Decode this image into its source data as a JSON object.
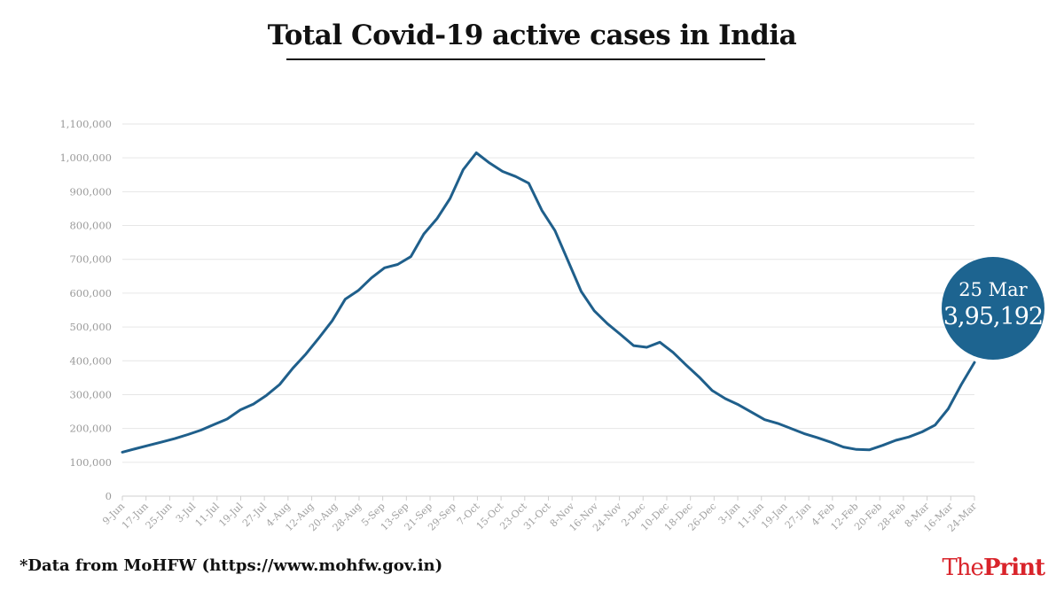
{
  "title": "Total Covid-19 active cases in India",
  "footer_note": "*Data from MoHFW (https://www.mohfw.gov.in)",
  "logo": {
    "the": "The",
    "print": "Print"
  },
  "colors": {
    "line": "#1f5f8b",
    "callout": "#1d6490",
    "grid": "#e6e6e6",
    "logo": "#d9242b"
  },
  "chart_data": {
    "type": "line",
    "title": "Total Covid-19 active cases in India",
    "xlabel": "",
    "ylabel": "",
    "ylim": [
      0,
      1100000
    ],
    "grid": true,
    "y_ticks": [
      0,
      100000,
      200000,
      300000,
      400000,
      500000,
      600000,
      700000,
      800000,
      900000,
      1000000,
      1100000
    ],
    "y_tick_labels": [
      "0",
      "100,000",
      "200,000",
      "300,000",
      "400,000",
      "500,000",
      "600,000",
      "700,000",
      "800,000",
      "900,000",
      "1,000,000",
      "1,100,000"
    ],
    "x_tick_labels": [
      "9-Jun",
      "17-Jun",
      "25-Jun",
      "3-Jul",
      "11-Jul",
      "19-Jul",
      "27-Jul",
      "4-Aug",
      "12-Aug",
      "20-Aug",
      "28-Aug",
      "5-Sep",
      "13-Sep",
      "21-Sep",
      "29-Sep",
      "7-Oct",
      "15-Oct",
      "23-Oct",
      "31-Oct",
      "8-Nov",
      "16-Nov",
      "24-Nov",
      "2-Dec",
      "10-Dec",
      "18-Dec",
      "26-Dec",
      "3-Jan",
      "11-Jan",
      "19-Jan",
      "27-Jan",
      "4-Feb",
      "12-Feb",
      "20-Feb",
      "28-Feb",
      "8-Mar",
      "16-Mar",
      "24-Mar"
    ],
    "series": [
      {
        "values": [
          130000,
          140000,
          150000,
          160000,
          170000,
          182000,
          195000,
          212000,
          228000,
          255000,
          272000,
          298000,
          330000,
          378000,
          420000,
          468000,
          518000,
          582000,
          608000,
          645000,
          675000,
          685000,
          708000,
          775000,
          820000,
          880000,
          965000,
          1015000,
          985000,
          960000,
          945000,
          925000,
          845000,
          785000,
          695000,
          605000,
          548000,
          510000,
          478000,
          445000,
          440000,
          455000,
          425000,
          388000,
          352000,
          312000,
          288000,
          270000,
          248000,
          226000,
          215000,
          200000,
          185000,
          173000,
          160000,
          145000,
          138000,
          137000,
          150000,
          165000,
          175000,
          190000,
          210000,
          258000,
          330000,
          395192
        ]
      }
    ],
    "last_point": {
      "date": "25 Mar",
      "value": 395192,
      "value_label": "3,95,192"
    }
  }
}
